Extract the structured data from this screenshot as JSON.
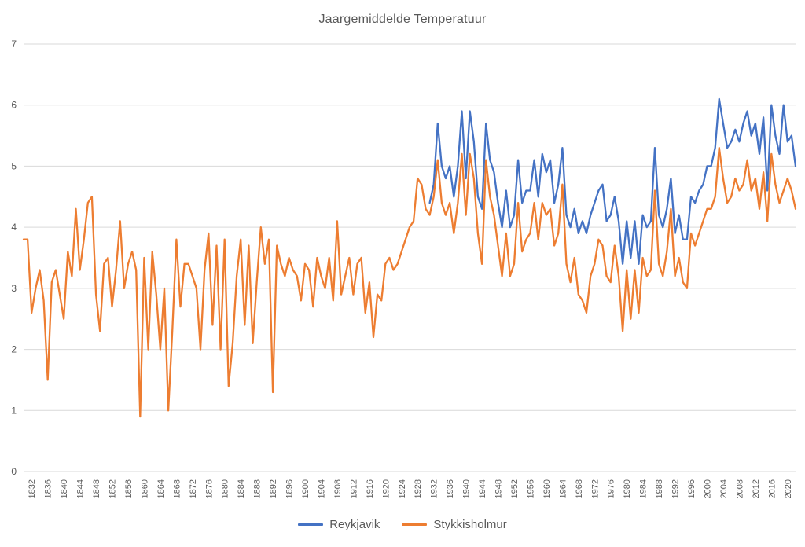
{
  "chart_data": {
    "type": "line",
    "title": "Jaargemiddelde Temperatuur",
    "xlabel": "",
    "ylabel": "",
    "xlim": [
      1830,
      2022
    ],
    "ylim": [
      0,
      7
    ],
    "y_ticks": [
      0,
      1,
      2,
      3,
      4,
      5,
      6,
      7
    ],
    "x_ticks": [
      1832,
      1836,
      1840,
      1844,
      1848,
      1852,
      1856,
      1860,
      1864,
      1868,
      1872,
      1876,
      1880,
      1884,
      1888,
      1892,
      1896,
      1900,
      1904,
      1908,
      1912,
      1916,
      1920,
      1924,
      1928,
      1932,
      1936,
      1940,
      1944,
      1948,
      1952,
      1956,
      1960,
      1964,
      1968,
      1972,
      1976,
      1980,
      1984,
      1988,
      1992,
      1996,
      2000,
      2004,
      2008,
      2012,
      2016,
      2020
    ],
    "grid": "horizontal",
    "grid_color": "#D9D9D9",
    "text_color": "#595959",
    "legend_position": "bottom",
    "series": [
      {
        "name": "Reykjavik",
        "color": "#4472C4",
        "start_year": 1931,
        "values": [
          4.4,
          4.7,
          5.7,
          5.0,
          4.8,
          5.0,
          4.5,
          5.0,
          5.9,
          4.8,
          5.9,
          5.4,
          4.5,
          4.3,
          5.7,
          5.1,
          4.9,
          4.4,
          4.0,
          4.6,
          4.0,
          4.2,
          5.1,
          4.4,
          4.6,
          4.6,
          5.1,
          4.5,
          5.2,
          4.9,
          5.1,
          4.4,
          4.7,
          5.3,
          4.2,
          4.0,
          4.3,
          3.9,
          4.1,
          3.9,
          4.2,
          4.4,
          4.6,
          4.7,
          4.1,
          4.2,
          4.5,
          4.1,
          3.4,
          4.1,
          3.5,
          4.1,
          3.4,
          4.2,
          4.0,
          4.1,
          5.3,
          4.2,
          4.0,
          4.3,
          4.8,
          3.9,
          4.2,
          3.8,
          3.8,
          4.5,
          4.4,
          4.6,
          4.7,
          5.0,
          5.0,
          5.3,
          6.1,
          5.7,
          5.3,
          5.4,
          5.6,
          5.4,
          5.7,
          5.9,
          5.5,
          5.7,
          5.2,
          5.8,
          4.6,
          6.0,
          5.5,
          5.2,
          6.0,
          5.4,
          5.5,
          5.0
        ]
      },
      {
        "name": "Stykkisholmur",
        "color": "#ED7D31",
        "start_year": 1830,
        "values": [
          3.8,
          3.8,
          2.6,
          3.0,
          3.3,
          2.8,
          1.5,
          3.1,
          3.3,
          2.9,
          2.5,
          3.6,
          3.2,
          4.3,
          3.3,
          3.8,
          4.4,
          4.5,
          2.9,
          2.3,
          3.4,
          3.5,
          2.7,
          3.3,
          4.1,
          3.0,
          3.4,
          3.6,
          3.3,
          0.9,
          3.5,
          2.0,
          3.6,
          2.9,
          2.0,
          3.0,
          1.0,
          2.3,
          3.8,
          2.7,
          3.4,
          3.4,
          3.2,
          3.0,
          2.0,
          3.3,
          3.9,
          2.4,
          3.7,
          2.0,
          3.8,
          1.4,
          2.1,
          3.2,
          3.8,
          2.4,
          3.7,
          2.1,
          3.1,
          4.0,
          3.4,
          3.8,
          1.3,
          3.7,
          3.4,
          3.2,
          3.5,
          3.3,
          3.2,
          2.8,
          3.4,
          3.3,
          2.7,
          3.5,
          3.2,
          3.0,
          3.5,
          2.8,
          4.1,
          2.9,
          3.2,
          3.5,
          2.9,
          3.4,
          3.5,
          2.6,
          3.1,
          2.2,
          2.9,
          2.8,
          3.4,
          3.5,
          3.3,
          3.4,
          3.6,
          3.8,
          4.0,
          4.1,
          4.8,
          4.7,
          4.3,
          4.2,
          4.5,
          5.1,
          4.4,
          4.2,
          4.4,
          3.9,
          4.4,
          5.2,
          4.2,
          5.2,
          4.8,
          3.9,
          3.4,
          5.1,
          4.5,
          4.2,
          3.7,
          3.2,
          3.9,
          3.2,
          3.4,
          4.4,
          3.6,
          3.8,
          3.9,
          4.4,
          3.8,
          4.4,
          4.2,
          4.3,
          3.7,
          3.9,
          4.7,
          3.4,
          3.1,
          3.5,
          2.9,
          2.8,
          2.6,
          3.2,
          3.4,
          3.8,
          3.7,
          3.2,
          3.1,
          3.7,
          3.2,
          2.3,
          3.3,
          2.5,
          3.3,
          2.6,
          3.5,
          3.2,
          3.3,
          4.6,
          3.4,
          3.2,
          3.6,
          4.3,
          3.2,
          3.5,
          3.1,
          3.0,
          3.9,
          3.7,
          3.9,
          4.1,
          4.3,
          4.3,
          4.5,
          5.3,
          4.8,
          4.4,
          4.5,
          4.8,
          4.6,
          4.7,
          5.1,
          4.6,
          4.8,
          4.3,
          4.9,
          4.1,
          5.2,
          4.7,
          4.4,
          4.6,
          4.8,
          4.6,
          4.3
        ]
      }
    ]
  }
}
